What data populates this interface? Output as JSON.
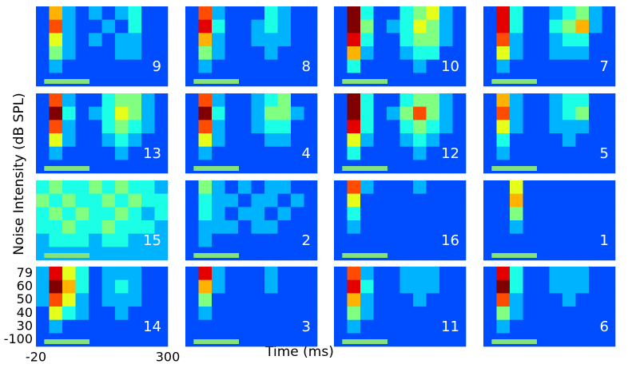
{
  "chart_data": {
    "type": "heatmap",
    "ylabel": "Noise Intensity (dB SPL)",
    "xlabel": "Time (ms)",
    "xlim": [
      -20,
      300
    ],
    "xticks": [
      -20,
      300
    ],
    "y_categories": [
      79,
      60,
      50,
      40,
      30,
      -100
    ],
    "stimulus": [
      0,
      110
    ],
    "stimulus_color": "#86e37c",
    "color_range": [
      0,
      10
    ],
    "panels": [
      {
        "label": 9,
        "values": [
          [
            2,
            7,
            3,
            2,
            3,
            2,
            3,
            4,
            2,
            2
          ],
          [
            2,
            8,
            3,
            2,
            2,
            3,
            2,
            4,
            2,
            2
          ],
          [
            2,
            6,
            3,
            2,
            3,
            2,
            3,
            3,
            2,
            2
          ],
          [
            2,
            5,
            3,
            2,
            2,
            2,
            3,
            3,
            2,
            2
          ],
          [
            2,
            3,
            2,
            2,
            2,
            2,
            2,
            2,
            2,
            2
          ],
          [
            2,
            2,
            2,
            2,
            2,
            2,
            2,
            2,
            2,
            2
          ]
        ]
      },
      {
        "label": 8,
        "values": [
          [
            2,
            8,
            3,
            2,
            2,
            2,
            4,
            3,
            2,
            2
          ],
          [
            2,
            9,
            4,
            2,
            2,
            3,
            4,
            3,
            2,
            2
          ],
          [
            2,
            7,
            3,
            2,
            2,
            3,
            3,
            3,
            2,
            2
          ],
          [
            2,
            5,
            3,
            2,
            2,
            2,
            3,
            2,
            2,
            2
          ],
          [
            2,
            3,
            2,
            2,
            2,
            2,
            2,
            2,
            2,
            2
          ],
          [
            2,
            2,
            2,
            2,
            2,
            2,
            2,
            2,
            2,
            2
          ]
        ]
      },
      {
        "label": 10,
        "values": [
          [
            2,
            10,
            4,
            2,
            2,
            4,
            5,
            6,
            3,
            2
          ],
          [
            2,
            10,
            5,
            2,
            3,
            4,
            6,
            5,
            3,
            2
          ],
          [
            2,
            9,
            4,
            2,
            2,
            4,
            5,
            5,
            3,
            2
          ],
          [
            2,
            7,
            3,
            2,
            2,
            3,
            4,
            4,
            2,
            2
          ],
          [
            2,
            4,
            2,
            2,
            2,
            2,
            3,
            2,
            2,
            2
          ],
          [
            2,
            2,
            2,
            2,
            2,
            2,
            2,
            2,
            2,
            2
          ]
        ]
      },
      {
        "label": 7,
        "values": [
          [
            2,
            9,
            4,
            2,
            2,
            3,
            4,
            5,
            3,
            2
          ],
          [
            2,
            9,
            4,
            2,
            2,
            4,
            5,
            7,
            3,
            2
          ],
          [
            2,
            8,
            3,
            2,
            2,
            3,
            4,
            4,
            2,
            2
          ],
          [
            2,
            6,
            3,
            2,
            2,
            3,
            3,
            3,
            2,
            2
          ],
          [
            2,
            3,
            2,
            2,
            2,
            2,
            2,
            2,
            2,
            2
          ],
          [
            2,
            2,
            2,
            2,
            2,
            2,
            2,
            2,
            2,
            2
          ]
        ]
      },
      {
        "label": 13,
        "values": [
          [
            2,
            8,
            3,
            2,
            2,
            4,
            5,
            5,
            3,
            2
          ],
          [
            2,
            10,
            4,
            2,
            3,
            4,
            6,
            5,
            3,
            2
          ],
          [
            2,
            8,
            3,
            2,
            2,
            4,
            5,
            4,
            3,
            2
          ],
          [
            2,
            6,
            3,
            2,
            2,
            3,
            4,
            3,
            2,
            2
          ],
          [
            2,
            3,
            2,
            2,
            2,
            2,
            3,
            2,
            2,
            2
          ],
          [
            2,
            2,
            2,
            2,
            2,
            2,
            2,
            2,
            2,
            2
          ]
        ]
      },
      {
        "label": 4,
        "values": [
          [
            2,
            8,
            3,
            2,
            2,
            3,
            4,
            5,
            2,
            2
          ],
          [
            2,
            10,
            4,
            2,
            2,
            3,
            5,
            5,
            3,
            2
          ],
          [
            2,
            8,
            3,
            2,
            2,
            3,
            4,
            4,
            2,
            2
          ],
          [
            2,
            6,
            3,
            2,
            2,
            2,
            3,
            3,
            2,
            2
          ],
          [
            2,
            3,
            2,
            2,
            2,
            2,
            2,
            2,
            2,
            2
          ],
          [
            2,
            2,
            2,
            2,
            2,
            2,
            2,
            2,
            2,
            2
          ]
        ]
      },
      {
        "label": 12,
        "values": [
          [
            2,
            10,
            4,
            2,
            2,
            4,
            5,
            5,
            3,
            2
          ],
          [
            2,
            10,
            4,
            2,
            3,
            5,
            8,
            5,
            3,
            2
          ],
          [
            2,
            9,
            4,
            2,
            2,
            4,
            5,
            4,
            3,
            2
          ],
          [
            2,
            6,
            3,
            2,
            2,
            3,
            4,
            3,
            2,
            2
          ],
          [
            2,
            4,
            2,
            2,
            2,
            2,
            3,
            2,
            2,
            2
          ],
          [
            2,
            2,
            2,
            2,
            2,
            2,
            2,
            2,
            2,
            2
          ]
        ]
      },
      {
        "label": 5,
        "values": [
          [
            2,
            7,
            3,
            2,
            2,
            3,
            4,
            4,
            2,
            2
          ],
          [
            2,
            8,
            3,
            2,
            2,
            3,
            4,
            5,
            2,
            2
          ],
          [
            2,
            6,
            3,
            2,
            2,
            3,
            3,
            3,
            2,
            2
          ],
          [
            2,
            4,
            2,
            2,
            2,
            2,
            3,
            2,
            2,
            2
          ],
          [
            2,
            3,
            2,
            2,
            2,
            2,
            2,
            2,
            2,
            2
          ],
          [
            2,
            2,
            2,
            2,
            2,
            2,
            2,
            2,
            2,
            2
          ]
        ]
      },
      {
        "label": 15,
        "values": [
          [
            4,
            5,
            4,
            4,
            5,
            4,
            5,
            4,
            4,
            3
          ],
          [
            5,
            4,
            5,
            4,
            4,
            5,
            4,
            5,
            4,
            4
          ],
          [
            4,
            5,
            4,
            5,
            4,
            4,
            5,
            4,
            3,
            4
          ],
          [
            4,
            4,
            5,
            4,
            4,
            5,
            4,
            4,
            4,
            3
          ],
          [
            3,
            4,
            4,
            4,
            3,
            4,
            4,
            3,
            3,
            3
          ],
          [
            3,
            3,
            3,
            3,
            3,
            3,
            3,
            3,
            3,
            3
          ]
        ]
      },
      {
        "label": 2,
        "values": [
          [
            2,
            5,
            3,
            2,
            3,
            2,
            3,
            3,
            2,
            2
          ],
          [
            2,
            4,
            3,
            3,
            2,
            3,
            3,
            2,
            3,
            2
          ],
          [
            2,
            4,
            3,
            2,
            3,
            3,
            2,
            3,
            2,
            2
          ],
          [
            2,
            3,
            3,
            3,
            2,
            3,
            3,
            2,
            2,
            2
          ],
          [
            2,
            3,
            2,
            2,
            2,
            2,
            2,
            2,
            2,
            2
          ],
          [
            2,
            2,
            2,
            2,
            2,
            2,
            2,
            2,
            2,
            2
          ]
        ]
      },
      {
        "label": 16,
        "values": [
          [
            2,
            8,
            3,
            2,
            2,
            2,
            3,
            2,
            2,
            2
          ],
          [
            2,
            6,
            2,
            2,
            2,
            2,
            2,
            2,
            2,
            2
          ],
          [
            2,
            4,
            2,
            2,
            2,
            2,
            2,
            2,
            2,
            2
          ],
          [
            2,
            3,
            2,
            2,
            2,
            2,
            2,
            2,
            2,
            2
          ],
          [
            2,
            2,
            2,
            2,
            2,
            2,
            2,
            2,
            2,
            2
          ],
          [
            2,
            2,
            2,
            2,
            2,
            2,
            2,
            2,
            2,
            2
          ]
        ]
      },
      {
        "label": 1,
        "values": [
          [
            2,
            2,
            6,
            2,
            2,
            2,
            2,
            2,
            2,
            2
          ],
          [
            2,
            2,
            7,
            2,
            2,
            2,
            2,
            2,
            2,
            2
          ],
          [
            2,
            2,
            5,
            2,
            2,
            2,
            2,
            2,
            2,
            2
          ],
          [
            2,
            2,
            3,
            2,
            2,
            2,
            2,
            2,
            2,
            2
          ],
          [
            2,
            2,
            2,
            2,
            2,
            2,
            2,
            2,
            2,
            2
          ],
          [
            2,
            2,
            2,
            2,
            2,
            2,
            2,
            2,
            2,
            2
          ]
        ]
      },
      {
        "label": 14,
        "values": [
          [
            3,
            9,
            6,
            4,
            2,
            3,
            3,
            3,
            2,
            2
          ],
          [
            3,
            10,
            7,
            4,
            2,
            3,
            4,
            3,
            2,
            2
          ],
          [
            3,
            8,
            6,
            3,
            2,
            3,
            3,
            3,
            2,
            2
          ],
          [
            2,
            6,
            4,
            3,
            2,
            2,
            3,
            2,
            2,
            2
          ],
          [
            2,
            3,
            2,
            2,
            2,
            2,
            2,
            2,
            2,
            2
          ],
          [
            2,
            2,
            2,
            2,
            2,
            2,
            2,
            2,
            2,
            2
          ]
        ]
      },
      {
        "label": 3,
        "values": [
          [
            2,
            9,
            3,
            2,
            2,
            2,
            3,
            2,
            2,
            2
          ],
          [
            2,
            7,
            3,
            2,
            2,
            2,
            3,
            2,
            2,
            2
          ],
          [
            2,
            5,
            2,
            2,
            2,
            2,
            2,
            2,
            2,
            2
          ],
          [
            2,
            3,
            2,
            2,
            2,
            2,
            2,
            2,
            2,
            2
          ],
          [
            2,
            2,
            2,
            2,
            2,
            2,
            2,
            2,
            2,
            2
          ],
          [
            2,
            2,
            2,
            2,
            2,
            2,
            2,
            2,
            2,
            2
          ]
        ]
      },
      {
        "label": 11,
        "values": [
          [
            2,
            8,
            3,
            2,
            2,
            3,
            3,
            3,
            2,
            2
          ],
          [
            2,
            9,
            4,
            2,
            2,
            3,
            3,
            3,
            2,
            2
          ],
          [
            2,
            7,
            3,
            2,
            2,
            2,
            3,
            2,
            2,
            2
          ],
          [
            2,
            5,
            3,
            2,
            2,
            2,
            2,
            2,
            2,
            2
          ],
          [
            2,
            3,
            2,
            2,
            2,
            2,
            2,
            2,
            2,
            2
          ],
          [
            2,
            2,
            2,
            2,
            2,
            2,
            2,
            2,
            2,
            2
          ]
        ]
      },
      {
        "label": 6,
        "values": [
          [
            2,
            9,
            4,
            2,
            2,
            3,
            3,
            3,
            2,
            2
          ],
          [
            2,
            10,
            4,
            2,
            2,
            3,
            3,
            3,
            2,
            2
          ],
          [
            2,
            8,
            3,
            2,
            2,
            2,
            3,
            2,
            2,
            2
          ],
          [
            2,
            5,
            3,
            2,
            2,
            2,
            2,
            2,
            2,
            2
          ],
          [
            2,
            3,
            2,
            2,
            2,
            2,
            2,
            2,
            2,
            2
          ],
          [
            2,
            2,
            2,
            2,
            2,
            2,
            2,
            2,
            2,
            2
          ]
        ]
      }
    ]
  }
}
